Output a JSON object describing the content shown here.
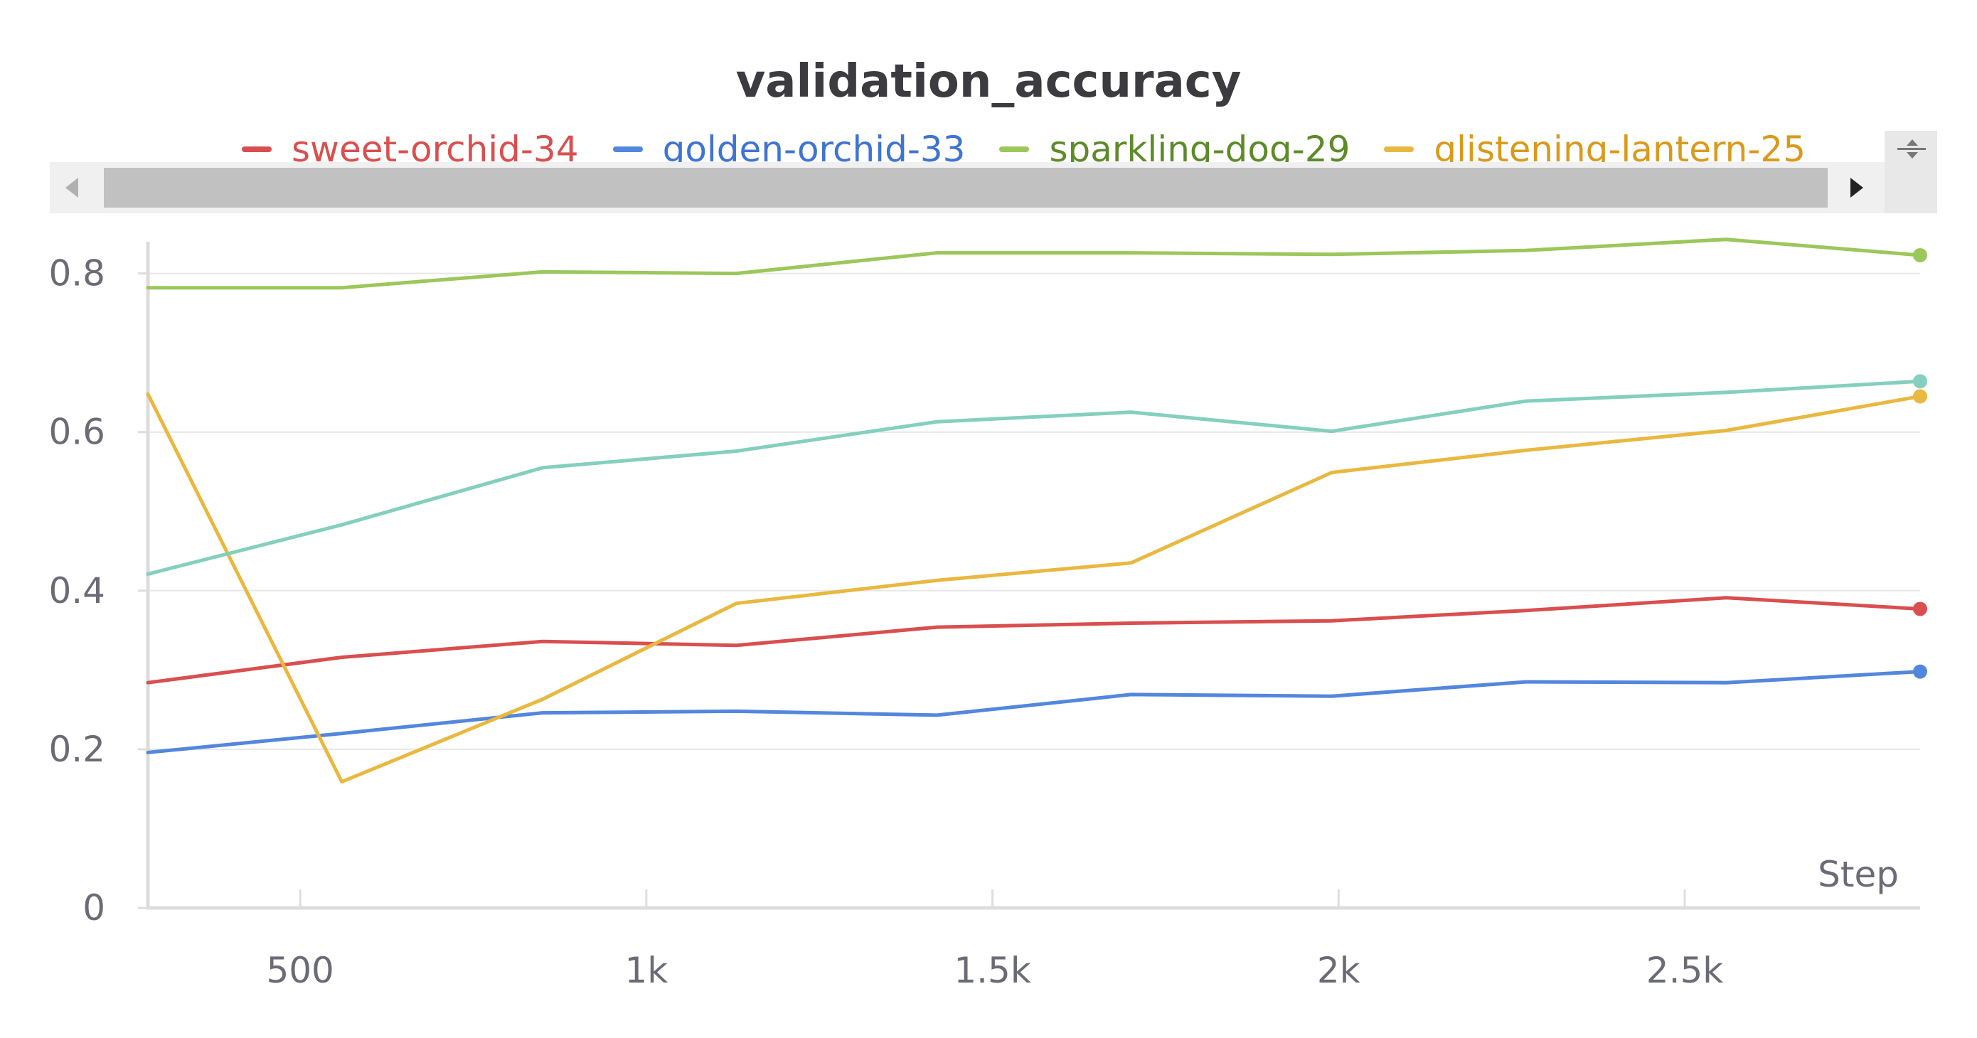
{
  "chart_data": {
    "type": "line",
    "title": "validation_accuracy",
    "xlabel": "Step",
    "ylabel": "",
    "xlim": [
      280,
      2840
    ],
    "ylim": [
      0,
      0.84
    ],
    "xticks": [
      500,
      1000,
      1500,
      2000,
      2500
    ],
    "xtick_labels": [
      "500",
      "1k",
      "1.5k",
      "2k",
      "2.5k"
    ],
    "yticks": [
      0,
      0.2,
      0.4,
      0.6,
      0.8
    ],
    "ytick_labels": [
      "0",
      "0.2",
      "0.4",
      "0.6",
      "0.8"
    ],
    "grid": true,
    "legend_position": "top",
    "x": [
      280,
      560,
      850,
      1130,
      1420,
      1700,
      1990,
      2270,
      2560,
      2840
    ],
    "series": [
      {
        "name": "sweet-orchid-34",
        "color": "#d94f4f",
        "legend_text_color": "#d94f4f",
        "values": [
          0.284,
          0.316,
          0.336,
          0.331,
          0.354,
          0.359,
          0.362,
          0.375,
          0.391,
          0.377
        ]
      },
      {
        "name": "golden-orchid-33",
        "color": "#5387dd",
        "legend_text_color": "#3f74cf",
        "values": [
          0.196,
          0.22,
          0.246,
          0.248,
          0.243,
          0.269,
          0.267,
          0.285,
          0.284,
          0.298
        ]
      },
      {
        "name": "sparkling-dog-29",
        "color": "#9bc75b",
        "legend_text_color": "#5d8a2a",
        "values": [
          0.782,
          0.782,
          0.802,
          0.8,
          0.826,
          0.826,
          0.824,
          0.829,
          0.843,
          0.823
        ]
      },
      {
        "name": "glistening-lantern-25",
        "color": "#e9b840",
        "legend_text_color": "#d99a1c",
        "values": [
          0.648,
          0.159,
          0.263,
          0.384,
          0.413,
          0.435,
          0.549,
          0.577,
          0.602,
          0.645
        ]
      },
      {
        "name": "",
        "color": "#84cfbd",
        "legend_text_color": "#84cfbd",
        "values": [
          0.421,
          0.483,
          0.555,
          0.576,
          0.613,
          0.625,
          0.601,
          0.639,
          0.65,
          0.664
        ]
      }
    ]
  }
}
